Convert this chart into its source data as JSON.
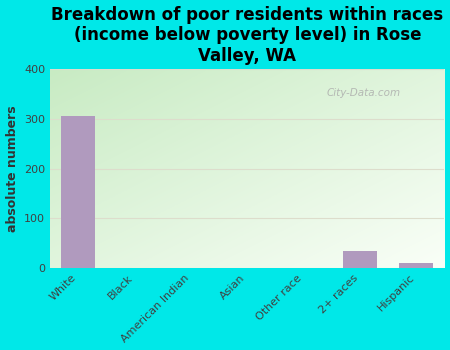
{
  "title": "Breakdown of poor residents within races\n(income below poverty level) in Rose\nValley, WA",
  "categories": [
    "White",
    "Black",
    "American Indian",
    "Asian",
    "Other race",
    "2+ races",
    "Hispanic"
  ],
  "values": [
    307,
    0,
    0,
    0,
    0,
    35,
    10
  ],
  "bar_color": "#b09abe",
  "ylabel": "absolute numbers",
  "ylim": [
    0,
    400
  ],
  "yticks": [
    0,
    100,
    200,
    300,
    400
  ],
  "background_color": "#00e8e8",
  "watermark": "City-Data.com",
  "title_fontsize": 12,
  "ylabel_fontsize": 9,
  "tick_fontsize": 8,
  "grid_color": "#ddddcc",
  "plot_bg_color_topleft": "#c8e8c0",
  "plot_bg_color_bottomright": "#f8fff4"
}
